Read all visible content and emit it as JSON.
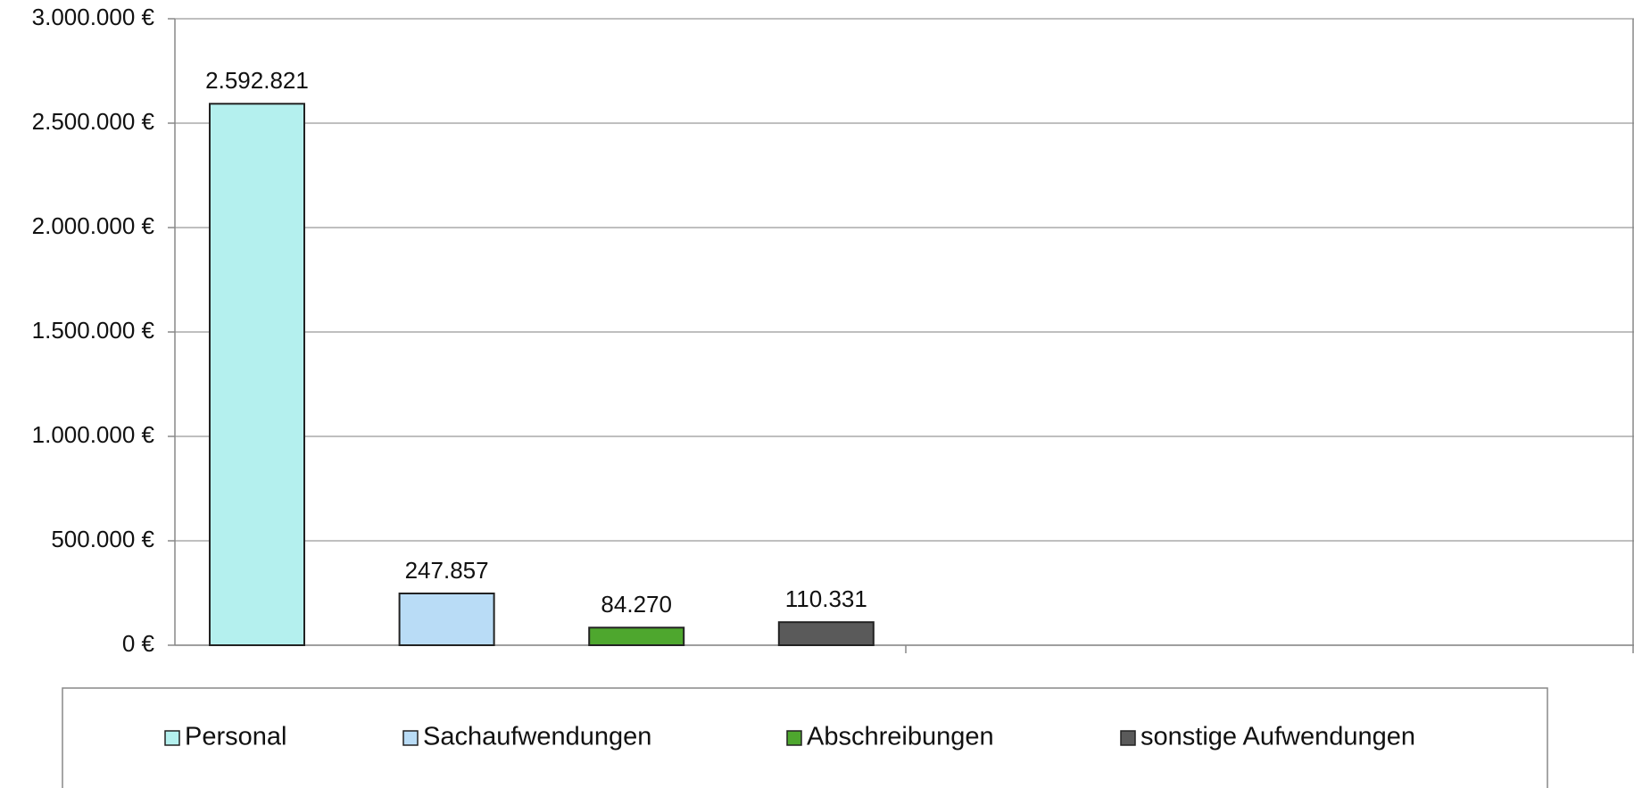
{
  "chart_data": {
    "type": "bar",
    "categories": [
      null
    ],
    "series": [
      {
        "name": "Personal",
        "color": "#b4f0ee",
        "values": [
          2592821
        ],
        "value_labels": [
          "2.592.821"
        ]
      },
      {
        "name": "Sachaufwendungen",
        "color": "#b9dcf6",
        "values": [
          247857
        ],
        "value_labels": [
          "247.857"
        ]
      },
      {
        "name": "Abschreibungen",
        "color": "#4ea72e",
        "values": [
          84270
        ],
        "value_labels": [
          "84.270"
        ]
      },
      {
        "name": "sonstige Aufwendungen",
        "color": "#5a5a5a",
        "values": [
          110331
        ],
        "value_labels": [
          "110.331"
        ]
      }
    ],
    "ylim": [
      0,
      3000000
    ],
    "yticks": [
      {
        "value": 0,
        "label": "0 €"
      },
      {
        "value": 500000,
        "label": "500.000 €"
      },
      {
        "value": 1000000,
        "label": "1.000.000 €"
      },
      {
        "value": 1500000,
        "label": "1.500.000 €"
      },
      {
        "value": 2000000,
        "label": "2.000.000 €"
      },
      {
        "value": 2500000,
        "label": "2.500.000 €"
      },
      {
        "value": 3000000,
        "label": "3.000.000 €"
      }
    ],
    "grid": true
  }
}
